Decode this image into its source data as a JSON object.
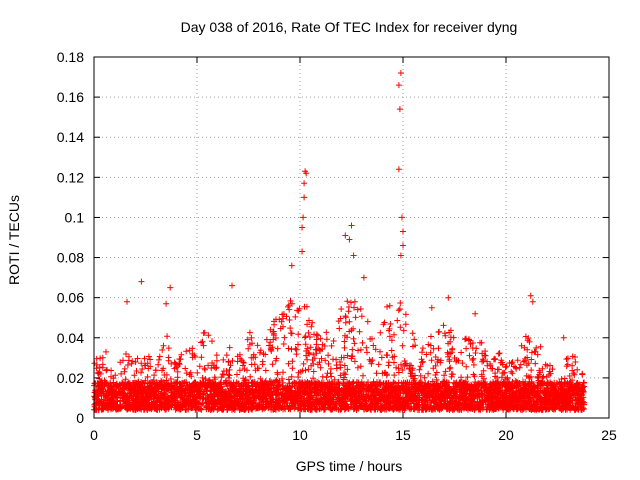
{
  "chart_data": {
    "type": "scatter",
    "title": "Day 038 of 2016, Rate Of TEC Index for receiver dyng",
    "xlabel": "GPS time / hours",
    "ylabel": "ROTI / TECUs",
    "xlim": [
      0,
      25
    ],
    "ylim": [
      0,
      0.18
    ],
    "xticks": [
      0,
      5,
      10,
      15,
      20,
      25
    ],
    "xtick_labels": [
      "0",
      "5",
      "10",
      "15",
      "20",
      "25"
    ],
    "yticks": [
      0,
      0.02,
      0.04,
      0.06,
      0.08,
      0.1,
      0.12,
      0.14,
      0.16,
      0.18
    ],
    "ytick_labels": [
      "0",
      "0.02",
      "0.04",
      "0.06",
      "0.08",
      "0.1",
      "0.12",
      "0.14",
      "0.16",
      "0.18"
    ],
    "grid": true,
    "marker": "+",
    "marker_color": "#ff0000",
    "series": [
      {
        "name": "ROTI",
        "notable_points": [
          {
            "x": 1.6,
            "y": 0.058
          },
          {
            "x": 2.3,
            "y": 0.068
          },
          {
            "x": 3.5,
            "y": 0.057
          },
          {
            "x": 3.7,
            "y": 0.065
          },
          {
            "x": 6.7,
            "y": 0.066
          },
          {
            "x": 9.6,
            "y": 0.076
          },
          {
            "x": 10.1,
            "y": 0.083
          },
          {
            "x": 10.1,
            "y": 0.095
          },
          {
            "x": 10.15,
            "y": 0.1
          },
          {
            "x": 10.2,
            "y": 0.11
          },
          {
            "x": 10.2,
            "y": 0.117
          },
          {
            "x": 10.25,
            "y": 0.123
          },
          {
            "x": 10.3,
            "y": 0.122
          },
          {
            "x": 12.2,
            "y": 0.091
          },
          {
            "x": 12.4,
            "y": 0.089
          },
          {
            "x": 12.5,
            "y": 0.096
          },
          {
            "x": 12.6,
            "y": 0.081
          },
          {
            "x": 13.1,
            "y": 0.07
          },
          {
            "x": 14.8,
            "y": 0.124
          },
          {
            "x": 14.85,
            "y": 0.154
          },
          {
            "x": 14.8,
            "y": 0.166
          },
          {
            "x": 14.9,
            "y": 0.172
          },
          {
            "x": 14.95,
            "y": 0.1
          },
          {
            "x": 15.0,
            "y": 0.093
          },
          {
            "x": 15.0,
            "y": 0.086
          },
          {
            "x": 14.9,
            "y": 0.081
          },
          {
            "x": 16.4,
            "y": 0.055
          },
          {
            "x": 17.2,
            "y": 0.06
          },
          {
            "x": 18.5,
            "y": 0.052
          },
          {
            "x": 21.2,
            "y": 0.061
          },
          {
            "x": 21.3,
            "y": 0.058
          },
          {
            "x": 22.8,
            "y": 0.04
          }
        ],
        "envelope": [
          {
            "x": 0.0,
            "y": 0.028
          },
          {
            "x": 0.5,
            "y": 0.036
          },
          {
            "x": 1.0,
            "y": 0.026
          },
          {
            "x": 1.5,
            "y": 0.033
          },
          {
            "x": 2.0,
            "y": 0.029
          },
          {
            "x": 2.5,
            "y": 0.034
          },
          {
            "x": 3.0,
            "y": 0.03
          },
          {
            "x": 3.5,
            "y": 0.045
          },
          {
            "x": 4.0,
            "y": 0.031
          },
          {
            "x": 4.5,
            "y": 0.035
          },
          {
            "x": 5.0,
            "y": 0.038
          },
          {
            "x": 5.5,
            "y": 0.046
          },
          {
            "x": 6.0,
            "y": 0.033
          },
          {
            "x": 6.5,
            "y": 0.036
          },
          {
            "x": 7.0,
            "y": 0.032
          },
          {
            "x": 7.5,
            "y": 0.044
          },
          {
            "x": 8.0,
            "y": 0.048
          },
          {
            "x": 8.5,
            "y": 0.045
          },
          {
            "x": 9.0,
            "y": 0.055
          },
          {
            "x": 9.5,
            "y": 0.065
          },
          {
            "x": 10.0,
            "y": 0.068
          },
          {
            "x": 10.5,
            "y": 0.05
          },
          {
            "x": 11.0,
            "y": 0.04
          },
          {
            "x": 11.5,
            "y": 0.045
          },
          {
            "x": 12.0,
            "y": 0.058
          },
          {
            "x": 12.5,
            "y": 0.06
          },
          {
            "x": 13.0,
            "y": 0.055
          },
          {
            "x": 13.5,
            "y": 0.048
          },
          {
            "x": 14.0,
            "y": 0.055
          },
          {
            "x": 14.5,
            "y": 0.058
          },
          {
            "x": 15.0,
            "y": 0.062
          },
          {
            "x": 15.5,
            "y": 0.042
          },
          {
            "x": 16.0,
            "y": 0.045
          },
          {
            "x": 16.5,
            "y": 0.04
          },
          {
            "x": 17.0,
            "y": 0.048
          },
          {
            "x": 17.5,
            "y": 0.042
          },
          {
            "x": 18.0,
            "y": 0.04
          },
          {
            "x": 18.5,
            "y": 0.044
          },
          {
            "x": 19.0,
            "y": 0.035
          },
          {
            "x": 19.5,
            "y": 0.038
          },
          {
            "x": 20.0,
            "y": 0.028
          },
          {
            "x": 20.5,
            "y": 0.03
          },
          {
            "x": 21.0,
            "y": 0.048
          },
          {
            "x": 21.5,
            "y": 0.042
          },
          {
            "x": 22.0,
            "y": 0.026
          },
          {
            "x": 22.5,
            "y": 0.028
          },
          {
            "x": 23.0,
            "y": 0.032
          },
          {
            "x": 23.5,
            "y": 0.03
          },
          {
            "x": 23.8,
            "y": 0.02
          }
        ],
        "baseline_range": [
          0.004,
          0.018
        ],
        "x_range": [
          0.0,
          23.8
        ]
      }
    ]
  }
}
